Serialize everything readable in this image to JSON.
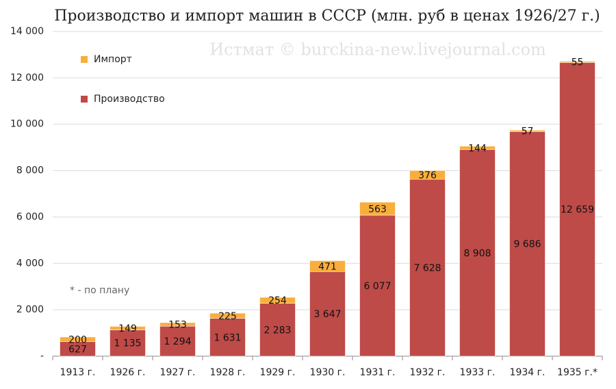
{
  "chart_data": {
    "type": "stacked-bar",
    "title": "Производство и импорт машин в СССР (млн. руб в ценах 1926/27 г.)",
    "watermark": "Истмат © burckina-new.livejournal.com",
    "note": "* - по плану",
    "categories": [
      "1913 г.",
      "1926 г.",
      "1927 г.",
      "1928 г.",
      "1929 г.",
      "1930 г.",
      "1931 г.",
      "1932 г.",
      "1933 г.",
      "1934 г.",
      "1935 г.*"
    ],
    "series": [
      {
        "name": "Производство",
        "color": "#be4b48",
        "values": [
          627,
          1135,
          1294,
          1631,
          2283,
          3647,
          6077,
          7628,
          8908,
          9686,
          12659
        ],
        "value_labels": [
          "627",
          "1 135",
          "1 294",
          "1 631",
          "2 283",
          "3 647",
          "6 077",
          "7 628",
          "8 908",
          "9 686",
          "12 659"
        ]
      },
      {
        "name": "Импорт",
        "color": "#f9ae3c",
        "values": [
          200,
          149,
          153,
          225,
          254,
          471,
          563,
          376,
          144,
          57,
          55
        ]
      }
    ],
    "ylim": [
      0,
      14000
    ],
    "yticks": [
      {
        "value": 0,
        "label": "-"
      },
      {
        "value": 2000,
        "label": "2 000"
      },
      {
        "value": 4000,
        "label": "4 000"
      },
      {
        "value": 6000,
        "label": "6 000"
      },
      {
        "value": 8000,
        "label": "8 000"
      },
      {
        "value": 10000,
        "label": "10 000"
      },
      {
        "value": 12000,
        "label": "12 000"
      },
      {
        "value": 14000,
        "label": "14 000"
      }
    ],
    "grid": true
  }
}
